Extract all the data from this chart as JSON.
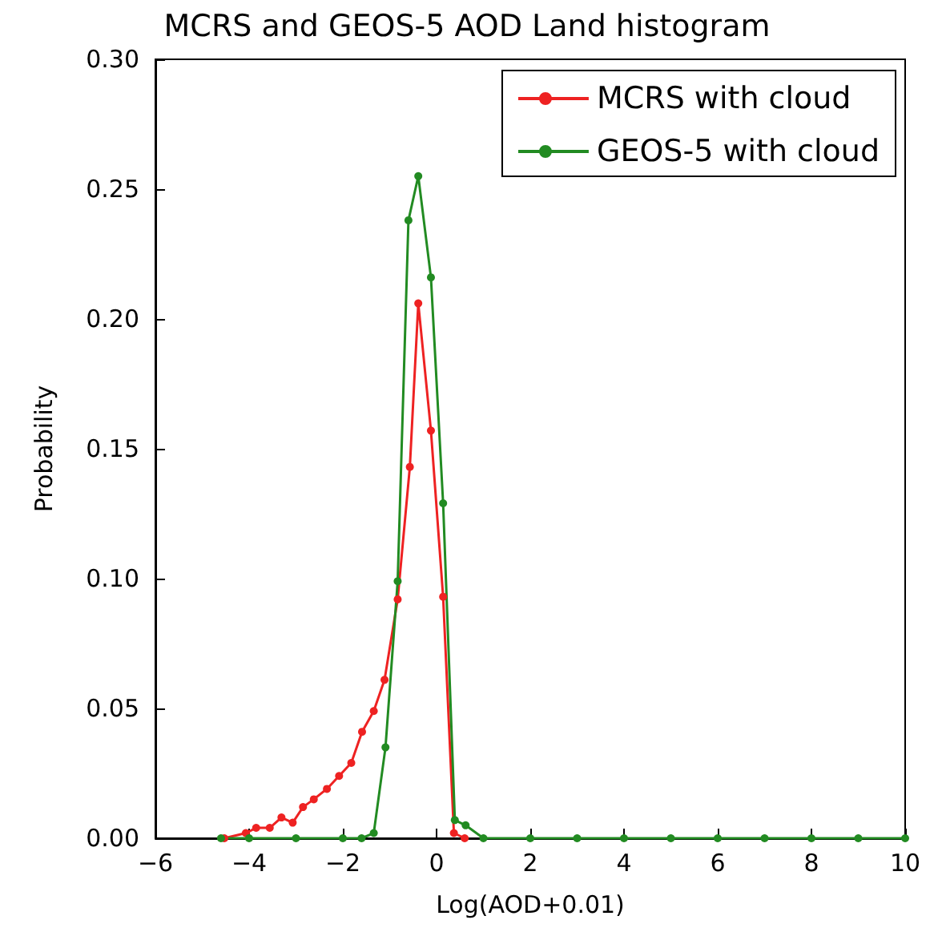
{
  "chart_data": {
    "type": "line",
    "title": "MCRS and GEOS-5 AOD Land histogram",
    "xlabel": "Log(AOD+0.01)",
    "ylabel": "Probability",
    "xlim": [
      -6,
      10
    ],
    "xticks": [
      -6,
      -4,
      -2,
      0,
      2,
      4,
      6,
      8,
      10
    ],
    "ylim": [
      0,
      0.3
    ],
    "yticks": [
      {
        "value": 0,
        "label": "0.00"
      },
      {
        "value": 0.05,
        "label": "0.05"
      },
      {
        "value": 0.1,
        "label": "0.10"
      },
      {
        "value": 0.15,
        "label": "0.15"
      },
      {
        "value": 0.2,
        "label": "0.20"
      },
      {
        "value": 0.25,
        "label": "0.25"
      },
      {
        "value": 0.3,
        "label": "0.30"
      }
    ],
    "grid": false,
    "legend": "top right",
    "marker": "circle",
    "line_style": "solid",
    "series": [
      {
        "name": "MCRS with cloud",
        "color": "#ee2222",
        "x": [
          -4.53,
          -4.07,
          -3.85,
          -3.56,
          -3.31,
          -3.07,
          -2.85,
          -2.62,
          -2.34,
          -2.08,
          -1.82,
          -1.59,
          -1.34,
          -1.11,
          -0.83,
          -0.57,
          -0.39,
          -0.12,
          0.14,
          0.37,
          0.6
        ],
        "values": [
          0,
          0.002,
          0.004,
          0.004,
          0.008,
          0.006,
          0.012,
          0.015,
          0.019,
          0.024,
          0.029,
          0.041,
          0.049,
          0.061,
          0.092,
          0.143,
          0.206,
          0.157,
          0.093,
          0.002,
          0
        ]
      },
      {
        "name": "GEOS-5 with cloud",
        "color": "#228b22",
        "x": [
          -4.6,
          -4,
          -3,
          -2,
          -1.6,
          -1.34,
          -1.09,
          -0.83,
          -0.6,
          -0.39,
          -0.12,
          0.14,
          0.39,
          0.62,
          1,
          2,
          3,
          4,
          5,
          6,
          7,
          8,
          9,
          10
        ],
        "values": [
          0,
          0,
          0,
          0,
          0,
          0.002,
          0.035,
          0.099,
          0.238,
          0.255,
          0.216,
          0.129,
          0.007,
          0.005,
          0,
          0,
          0,
          0,
          0,
          0,
          0,
          0,
          0,
          0
        ]
      }
    ]
  }
}
